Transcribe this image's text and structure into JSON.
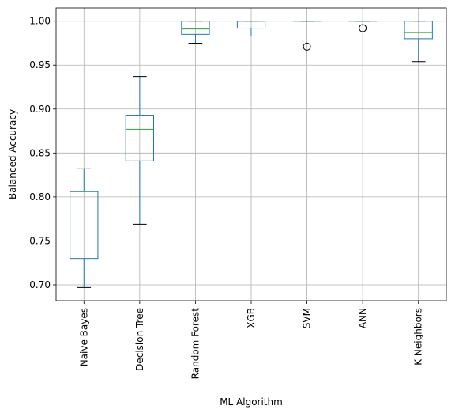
{
  "chart_data": {
    "type": "box",
    "title": "",
    "xlabel": "ML Algorithm",
    "ylabel": "Balanced Accuracy",
    "ylim": [
      0.682,
      1.015
    ],
    "yticks": [
      0.7,
      0.75,
      0.8,
      0.85,
      0.9,
      0.95,
      1.0
    ],
    "ytick_labels": [
      "0.70",
      "0.75",
      "0.80",
      "0.85",
      "0.90",
      "0.95",
      "1.00"
    ],
    "grid": true,
    "categories": [
      "Naive Bayes",
      "Decision Tree",
      "Random Forest",
      "XGB",
      "SVM",
      "ANN",
      "K Neighbors"
    ],
    "boxes": [
      {
        "whisker_low": 0.697,
        "q1": 0.73,
        "median": 0.759,
        "q3": 0.806,
        "whisker_high": 0.832,
        "outliers": []
      },
      {
        "whisker_low": 0.769,
        "q1": 0.841,
        "median": 0.877,
        "q3": 0.893,
        "whisker_high": 0.937,
        "outliers": []
      },
      {
        "whisker_low": 0.975,
        "q1": 0.985,
        "median": 0.991,
        "q3": 1.0,
        "whisker_high": 1.0,
        "outliers": []
      },
      {
        "whisker_low": 0.983,
        "q1": 0.992,
        "median": 1.0,
        "q3": 1.0,
        "whisker_high": 1.0,
        "outliers": []
      },
      {
        "whisker_low": 1.0,
        "q1": 1.0,
        "median": 1.0,
        "q3": 1.0,
        "whisker_high": 1.0,
        "outliers": [
          0.971
        ]
      },
      {
        "whisker_low": 1.0,
        "q1": 1.0,
        "median": 1.0,
        "q3": 1.0,
        "whisker_high": 1.0,
        "outliers": [
          0.992
        ]
      },
      {
        "whisker_low": 0.954,
        "q1": 0.98,
        "median": 0.987,
        "q3": 1.0,
        "whisker_high": 1.0,
        "outliers": []
      }
    ],
    "colors": {
      "box": "#1f77b4",
      "median": "#2ca02c",
      "whisker_cap": "#000000",
      "grid": "#b0b0b0",
      "outlier": "#000000"
    }
  }
}
